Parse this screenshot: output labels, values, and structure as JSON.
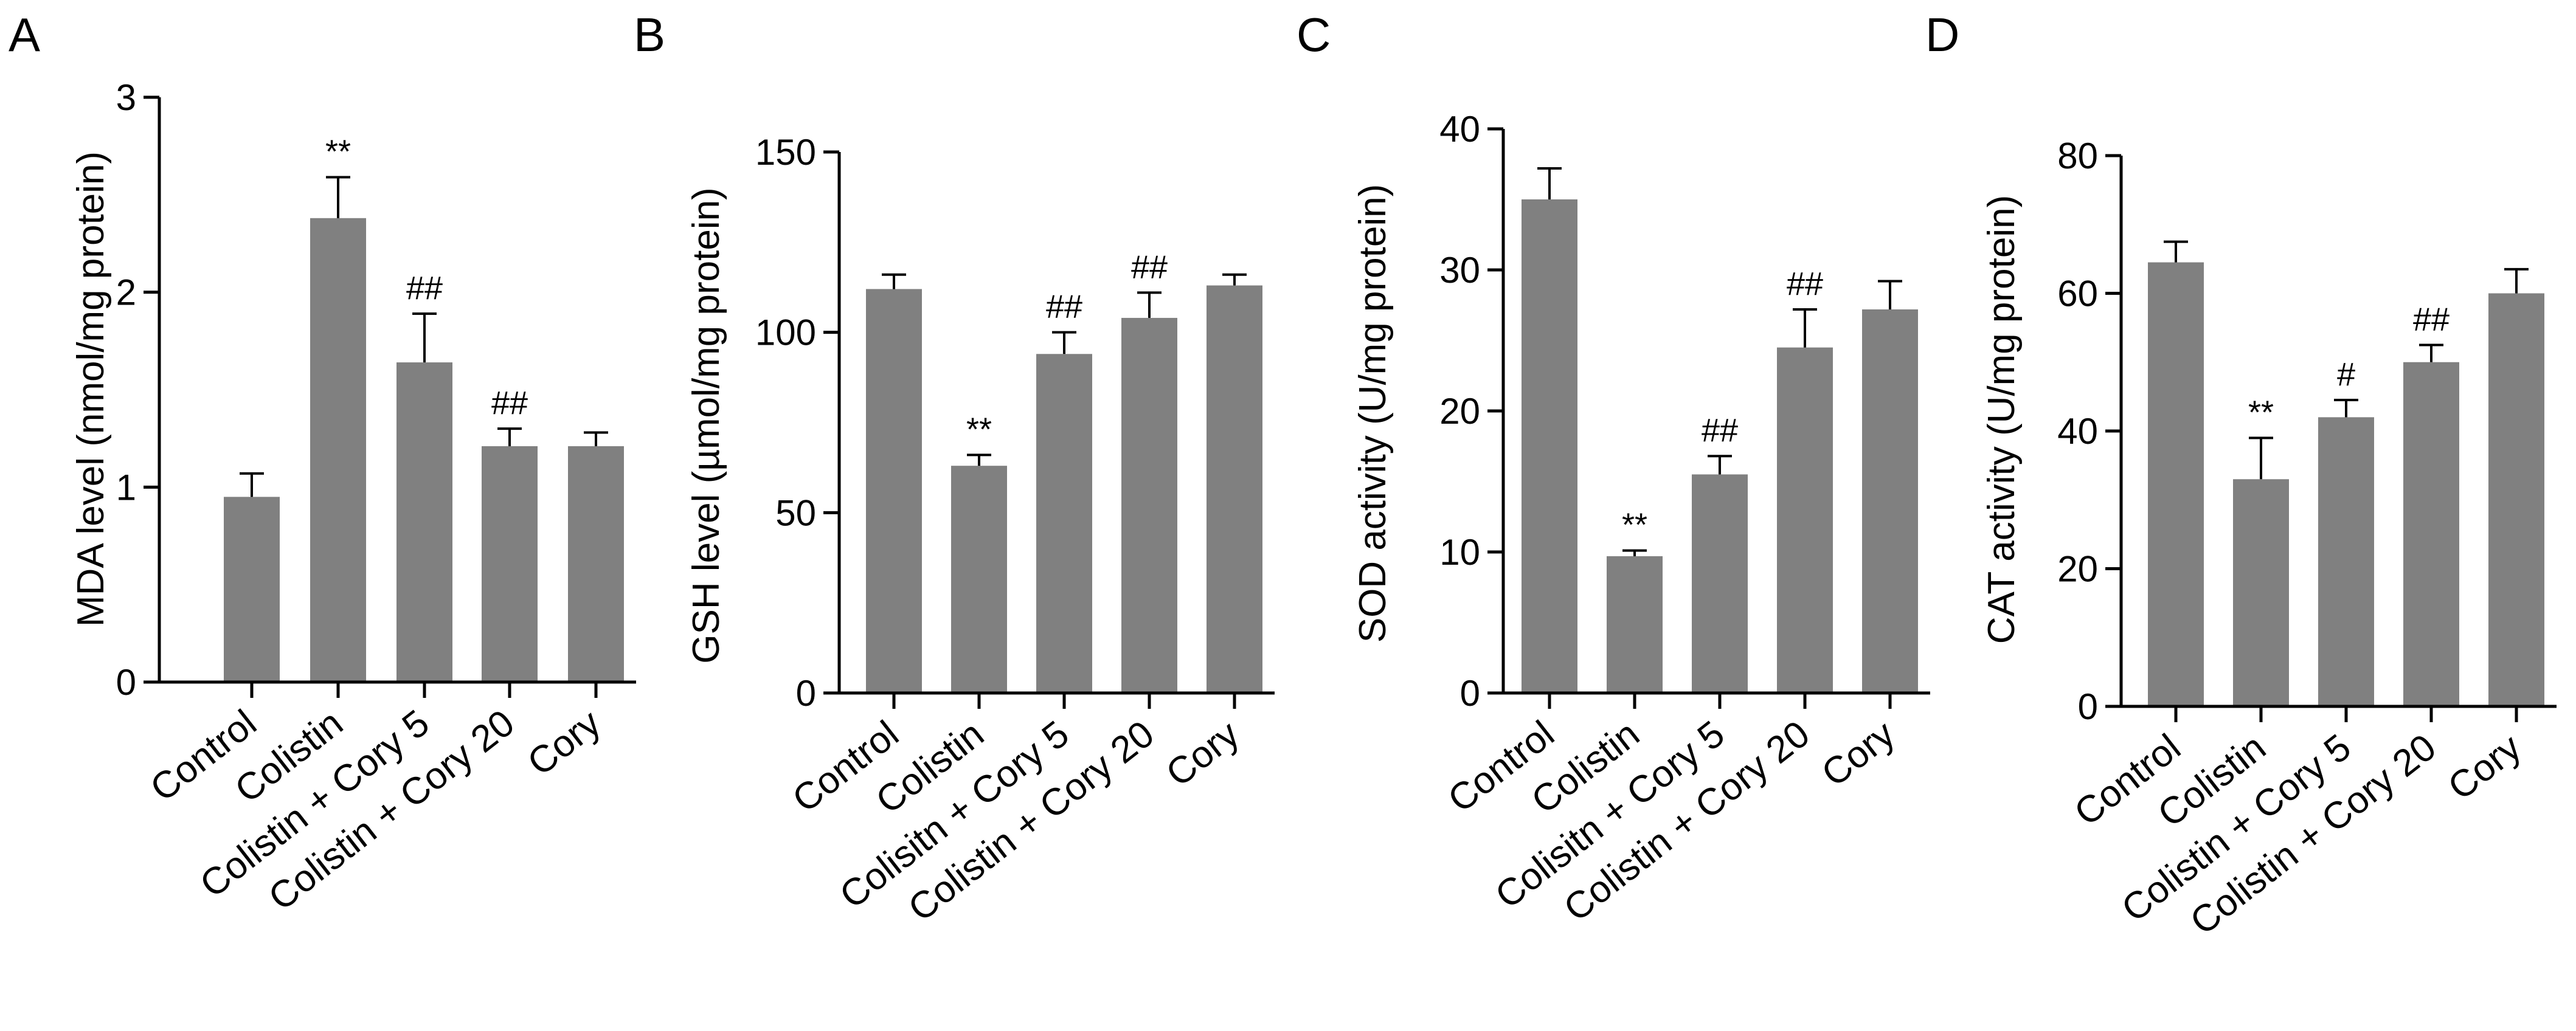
{
  "figure": {
    "background": "#ffffff",
    "bar_color": "#808080",
    "line_color": "#000000"
  },
  "chart_data": [
    {
      "panel": "A",
      "type": "bar",
      "title": "",
      "xlabel": "",
      "ylabel": "MDA level (nmol/mg protein)",
      "ylim": [
        0,
        3
      ],
      "yticks": [
        "0",
        "1",
        "2",
        "3"
      ],
      "categories": [
        "Control",
        "Colistin",
        "Colistin + Cory 5",
        "Colistin + Cory 20",
        "Cory"
      ],
      "values": [
        0.95,
        2.38,
        1.64,
        1.21,
        1.21
      ],
      "errors": [
        0.12,
        0.21,
        0.25,
        0.09,
        0.07
      ],
      "annotations": [
        "",
        "**",
        "##",
        "##",
        ""
      ]
    },
    {
      "panel": "B",
      "type": "bar",
      "title": "",
      "xlabel": "",
      "ylabel": "GSH level (µmol/mg protein)",
      "ylim": [
        0,
        150
      ],
      "yticks": [
        "0",
        "50",
        "100",
        "150"
      ],
      "categories": [
        "Control",
        "Colistin",
        "Colisitn + Cory 5",
        "Colistin + Cory 20",
        "Cory"
      ],
      "values": [
        112,
        63,
        94,
        104,
        113
      ],
      "errors": [
        4,
        3,
        6,
        7,
        3
      ],
      "annotations": [
        "",
        "**",
        "##",
        "##",
        ""
      ]
    },
    {
      "panel": "C",
      "type": "bar",
      "title": "",
      "xlabel": "",
      "ylabel": "SOD activity (U/mg protein)",
      "ylim": [
        0,
        40
      ],
      "yticks": [
        "0",
        "10",
        "20",
        "30",
        "40"
      ],
      "categories": [
        "Control",
        "Colistin",
        "Colisitn + Cory 5",
        "Colistin + Cory 20",
        "Cory"
      ],
      "values": [
        35,
        9.7,
        15.5,
        24.5,
        27.2
      ],
      "errors": [
        2.2,
        0.4,
        1.3,
        2.7,
        2.0
      ],
      "annotations": [
        "",
        "**",
        "##",
        "##",
        ""
      ]
    },
    {
      "panel": "D",
      "type": "bar",
      "title": "",
      "xlabel": "",
      "ylabel": "CAT activity (U/mg protein)",
      "ylim": [
        0,
        80
      ],
      "yticks": [
        "0",
        "20",
        "40",
        "60",
        "80"
      ],
      "categories": [
        "Control",
        "Colistin",
        "Colistin + Cory 5",
        "Colistin + Cory 20",
        "Cory"
      ],
      "values": [
        64.5,
        33,
        42,
        50,
        60
      ],
      "errors": [
        3,
        6,
        2.5,
        2.5,
        3.5
      ],
      "annotations": [
        "",
        "**",
        "#",
        "##",
        ""
      ]
    }
  ]
}
